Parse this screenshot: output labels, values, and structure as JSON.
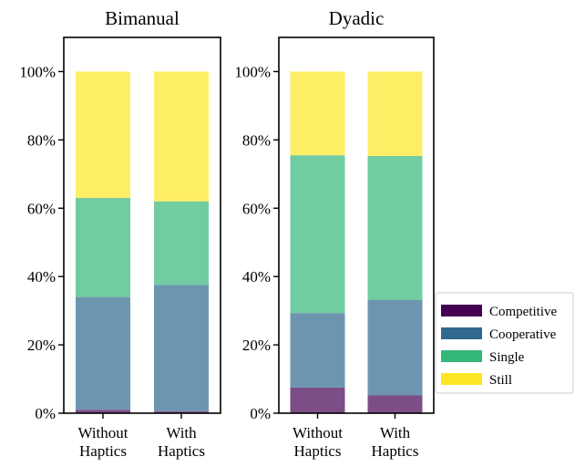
{
  "chart_data": [
    {
      "type": "bar",
      "stacked": true,
      "title": "Bimanual",
      "categories": [
        [
          "Without",
          "Haptics"
        ],
        [
          "With",
          "Haptics"
        ]
      ],
      "ylim": [
        0,
        1.1
      ],
      "yticks": [
        0,
        0.2,
        0.4,
        0.6,
        0.8,
        1.0
      ],
      "ytick_labels": [
        "0%",
        "20%",
        "40%",
        "60%",
        "80%",
        "100%"
      ],
      "series": [
        {
          "name": "Competitive",
          "values": [
            0.01,
            0.005
          ]
        },
        {
          "name": "Cooperative",
          "values": [
            0.33,
            0.37
          ]
        },
        {
          "name": "Single",
          "values": [
            0.29,
            0.245
          ]
        },
        {
          "name": "Still",
          "values": [
            0.37,
            0.38
          ]
        }
      ]
    },
    {
      "type": "bar",
      "stacked": true,
      "title": "Dyadic",
      "categories": [
        [
          "Without",
          "Haptics"
        ],
        [
          "With",
          "Haptics"
        ]
      ],
      "ylim": [
        0,
        1.1
      ],
      "yticks": [
        0,
        0.2,
        0.4,
        0.6,
        0.8,
        1.0
      ],
      "ytick_labels": [
        "0%",
        "20%",
        "40%",
        "60%",
        "80%",
        "100%"
      ],
      "series": [
        {
          "name": "Competitive",
          "values": [
            0.075,
            0.052
          ]
        },
        {
          "name": "Cooperative",
          "values": [
            0.218,
            0.28
          ]
        },
        {
          "name": "Single",
          "values": [
            0.462,
            0.421
          ]
        },
        {
          "name": "Still",
          "values": [
            0.245,
            0.247
          ]
        }
      ]
    }
  ],
  "colors": {
    "Competitive": "#440154",
    "Cooperative": "#31688e",
    "Single": "#35b779",
    "Still": "#fde725"
  },
  "bar_opacity": 0.7,
  "legend": {
    "position": "right",
    "entries": [
      "Competitive",
      "Cooperative",
      "Single",
      "Still"
    ]
  }
}
